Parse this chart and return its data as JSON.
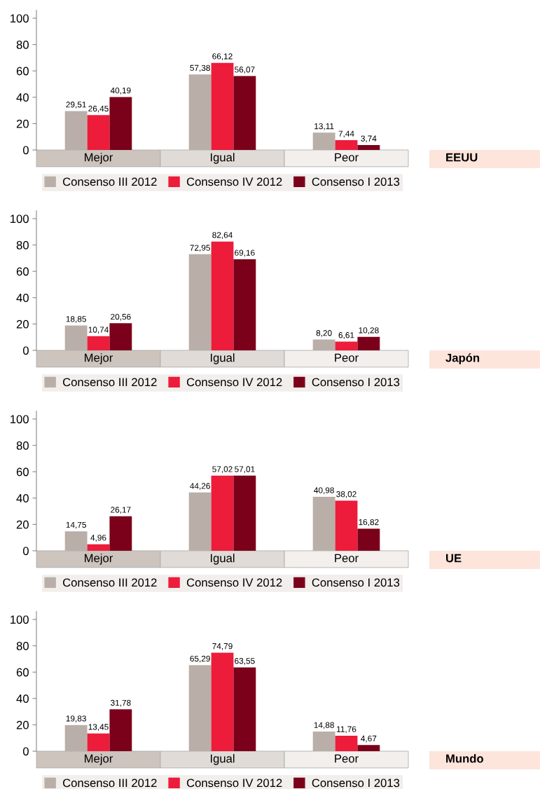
{
  "chart_data": [
    {
      "type": "bar",
      "annotations": [
        "EEUU"
      ],
      "categories": [
        "Mejor",
        "Igual",
        "Peor"
      ],
      "series": [
        {
          "name": "Consenso III 2012",
          "color": "#b9afa8",
          "values": [
            29.51,
            57.38,
            13.11
          ],
          "value_labels": [
            "29,51",
            "57,38",
            "13,11"
          ]
        },
        {
          "name": "Consenso IV 2012",
          "color": "#ec1c3a",
          "values": [
            26.45,
            66.12,
            7.44
          ],
          "value_labels": [
            "26,45",
            "66,12",
            "7,44"
          ]
        },
        {
          "name": "Consenso I 2013",
          "color": "#7b0019",
          "values": [
            40.19,
            56.07,
            3.74
          ],
          "value_labels": [
            "40,19",
            "56,07",
            "3,74"
          ]
        }
      ],
      "ylim": [
        0,
        106
      ],
      "yticks": [
        0,
        20,
        40,
        60,
        80,
        100
      ],
      "grid": false,
      "legend": "bottom"
    },
    {
      "type": "bar",
      "annotations": [
        "Japón"
      ],
      "categories": [
        "Mejor",
        "Igual",
        "Peor"
      ],
      "series": [
        {
          "name": "Consenso III 2012",
          "color": "#b9afa8",
          "values": [
            18.85,
            72.95,
            8.2
          ],
          "value_labels": [
            "18,85",
            "72,95",
            "8,20"
          ]
        },
        {
          "name": "Consenso IV 2012",
          "color": "#ec1c3a",
          "values": [
            10.74,
            82.64,
            6.61
          ],
          "value_labels": [
            "10,74",
            "82,64",
            "6,61"
          ]
        },
        {
          "name": "Consenso I 2013",
          "color": "#7b0019",
          "values": [
            20.56,
            69.16,
            10.28
          ],
          "value_labels": [
            "20,56",
            "69,16",
            "10,28"
          ]
        }
      ],
      "ylim": [
        0,
        106
      ],
      "yticks": [
        0,
        20,
        40,
        60,
        80,
        100
      ],
      "grid": false,
      "legend": "bottom"
    },
    {
      "type": "bar",
      "annotations": [
        "UE"
      ],
      "categories": [
        "Mejor",
        "Igual",
        "Peor"
      ],
      "series": [
        {
          "name": "Consenso III 2012",
          "color": "#b9afa8",
          "values": [
            14.75,
            44.26,
            40.98
          ],
          "value_labels": [
            "14,75",
            "44,26",
            "40,98"
          ]
        },
        {
          "name": "Consenso IV 2012",
          "color": "#ec1c3a",
          "values": [
            4.96,
            57.02,
            38.02
          ],
          "value_labels": [
            "4,96",
            "57,02",
            "38,02"
          ]
        },
        {
          "name": "Consenso I 2013",
          "color": "#7b0019",
          "values": [
            26.17,
            57.01,
            16.82
          ],
          "value_labels": [
            "26,17",
            "57,01",
            "16,82"
          ]
        }
      ],
      "ylim": [
        0,
        106
      ],
      "yticks": [
        0,
        20,
        40,
        60,
        80,
        100
      ],
      "grid": false,
      "legend": "bottom"
    },
    {
      "type": "bar",
      "annotations": [
        "Mundo"
      ],
      "categories": [
        "Mejor",
        "Igual",
        "Peor"
      ],
      "series": [
        {
          "name": "Consenso III 2012",
          "color": "#b9afa8",
          "values": [
            19.83,
            65.29,
            14.88
          ],
          "value_labels": [
            "19,83",
            "65,29",
            "14,88"
          ]
        },
        {
          "name": "Consenso IV 2012",
          "color": "#ec1c3a",
          "values": [
            13.45,
            74.79,
            11.76
          ],
          "value_labels": [
            "13,45",
            "74,79",
            "11,76"
          ]
        },
        {
          "name": "Consenso I 2013",
          "color": "#7b0019",
          "values": [
            31.78,
            63.55,
            4.67
          ],
          "value_labels": [
            "31,78",
            "63,55",
            "4,67"
          ]
        }
      ],
      "ylim": [
        0,
        106
      ],
      "yticks": [
        0,
        20,
        40,
        60,
        80,
        100
      ],
      "grid": false,
      "legend": "bottom"
    }
  ]
}
